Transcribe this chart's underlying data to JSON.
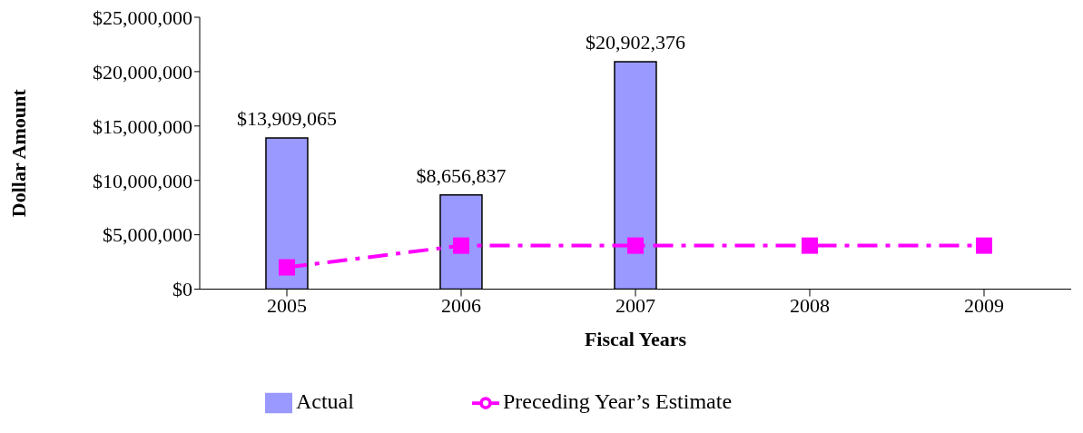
{
  "chart_data": {
    "type": "bar",
    "xlabel": "Fiscal Years",
    "ylabel": "Dollar Amount",
    "categories": [
      "2005",
      "2006",
      "2007",
      "2008",
      "2009"
    ],
    "series": [
      {
        "name": "Actual",
        "color": "#9999ff",
        "values": [
          13909065,
          8656837,
          20902376,
          null,
          null
        ],
        "value_labels": [
          "$13,909,065",
          "$8,656,837",
          "$20,902,376",
          null,
          null
        ]
      },
      {
        "name": "Preceding Year’s Estimate",
        "type": "line",
        "color": "#ff00ff",
        "values": [
          2000000,
          4000000,
          4000000,
          4000000,
          4000000
        ],
        "marker": "square",
        "line_style": "dashed"
      }
    ],
    "ylim": [
      0,
      25000000
    ],
    "yticks": [
      {
        "value": 0,
        "label": "$0"
      },
      {
        "value": 5000000,
        "label": "$5,000,000"
      },
      {
        "value": 10000000,
        "label": "$10,000,000"
      },
      {
        "value": 15000000,
        "label": "$15,000,000"
      },
      {
        "value": 20000000,
        "label": "$20,000,000"
      },
      {
        "value": 25000000,
        "label": "$25,000,000"
      }
    ],
    "grid": false,
    "legend": "bottom"
  }
}
